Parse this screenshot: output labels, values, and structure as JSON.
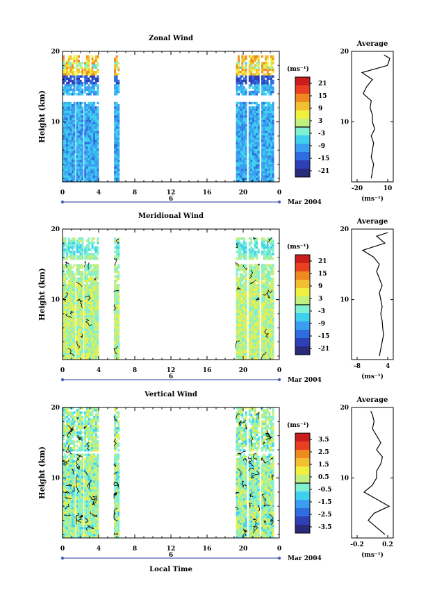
{
  "figure": {
    "date_label": "6",
    "month_label": "Mar 2004",
    "bottom_xlabel": "Local Time",
    "y_label": "Height (km)",
    "unit_label": "(ms⁻¹)",
    "x_ticks": [
      "0",
      "4",
      "8",
      "12",
      "16",
      "20",
      "0"
    ],
    "y_ticks": [
      "20",
      "10"
    ],
    "average_title": "Average"
  },
  "chart_data": [
    {
      "type": "heatmap",
      "title": "Zonal Wind",
      "xlabel": "",
      "ylabel": "Height (km)",
      "xlim": [
        0,
        24
      ],
      "ylim": [
        1.5,
        20
      ],
      "colorbar_unit": "(ms⁻¹)",
      "colorbar_ticks": [
        "21",
        "15",
        "9",
        "3",
        "-3",
        "-9",
        "-15",
        "-21"
      ],
      "colorbar_range": [
        -24,
        24
      ],
      "zero_line": 0,
      "data_blocks_hours": [
        [
          0,
          1.3
        ],
        [
          1.5,
          2.2
        ],
        [
          2.4,
          3.8
        ],
        [
          5.7,
          6.2
        ],
        [
          19.2,
          20.4
        ],
        [
          20.6,
          21.8
        ],
        [
          22,
          23.3
        ]
      ],
      "average_profile": {
        "title": "Average",
        "xlabel": "(ms⁻¹)",
        "x_ticks": [
          "-20",
          "10"
        ],
        "xlim": [
          -23,
          13
        ],
        "heights": [
          2,
          3,
          4,
          5,
          6,
          7,
          8,
          9,
          10,
          11,
          12,
          13,
          14,
          15,
          16,
          17,
          18,
          19,
          19.5
        ],
        "values": [
          -6,
          -5,
          -4,
          -6,
          -5,
          -4,
          -6,
          -3,
          -5,
          -5,
          -7,
          -6,
          -13,
          -10,
          -5,
          -14,
          8,
          10,
          5
        ]
      }
    },
    {
      "type": "heatmap",
      "title": "Meridional Wind",
      "xlabel": "",
      "ylabel": "Height (km)",
      "xlim": [
        0,
        24
      ],
      "ylim": [
        1.5,
        20
      ],
      "colorbar_unit": "(ms⁻¹)",
      "colorbar_ticks": [
        "21",
        "15",
        "9",
        "3",
        "-3",
        "-9",
        "-15",
        "-21"
      ],
      "colorbar_range": [
        -24,
        24
      ],
      "zero_line": 0,
      "data_blocks_hours": [
        [
          0,
          1.3
        ],
        [
          1.5,
          2.2
        ],
        [
          2.4,
          3.8
        ],
        [
          5.7,
          6.2
        ],
        [
          19.2,
          20.4
        ],
        [
          20.6,
          21.8
        ],
        [
          22,
          23.3
        ]
      ],
      "average_profile": {
        "title": "Average",
        "xlabel": "(ms⁻¹)",
        "x_ticks": [
          "-8",
          "4"
        ],
        "xlim": [
          -10,
          5
        ],
        "heights": [
          2,
          3,
          4,
          5,
          6,
          7,
          8,
          9,
          10,
          11,
          12,
          13,
          14,
          15,
          16,
          17,
          18,
          19,
          19.5
        ],
        "values": [
          0,
          0.5,
          1,
          1.5,
          1.2,
          1,
          0.5,
          1,
          0.5,
          0,
          1,
          0,
          -1,
          0,
          -2,
          -6,
          2,
          -1,
          3
        ]
      }
    },
    {
      "type": "heatmap",
      "title": "Vertical Wind",
      "xlabel": "Local Time",
      "ylabel": "Height (km)",
      "xlim": [
        0,
        24
      ],
      "ylim": [
        1.5,
        20
      ],
      "colorbar_unit": "(ms⁻¹)",
      "colorbar_ticks": [
        "3.5",
        "2.5",
        "1.5",
        "0.5",
        "-0.5",
        "-1.5",
        "-2.5",
        "-3.5"
      ],
      "colorbar_range": [
        -4,
        4
      ],
      "zero_line": 0,
      "data_blocks_hours": [
        [
          0,
          1.3
        ],
        [
          1.5,
          2.2
        ],
        [
          2.4,
          3.8
        ],
        [
          5.7,
          6.2
        ],
        [
          19.2,
          20.4
        ],
        [
          20.6,
          21.8
        ],
        [
          22,
          23.3
        ]
      ],
      "average_profile": {
        "title": "Average",
        "xlabel": "(ms⁻¹)",
        "x_ticks": [
          "-0.2",
          "0.2"
        ],
        "xlim": [
          -0.25,
          0.25
        ],
        "heights": [
          2,
          3,
          4,
          5,
          6,
          7,
          8,
          9,
          10,
          11,
          12,
          13,
          14,
          15,
          16,
          17,
          18,
          19,
          19.5
        ],
        "values": [
          0.15,
          0.05,
          -0.05,
          0.02,
          0.2,
          0.05,
          -0.1,
          0,
          0.05,
          0.05,
          0.1,
          0.12,
          0.05,
          0.1,
          0.05,
          0,
          0.02,
          0,
          -0.02
        ]
      }
    }
  ]
}
